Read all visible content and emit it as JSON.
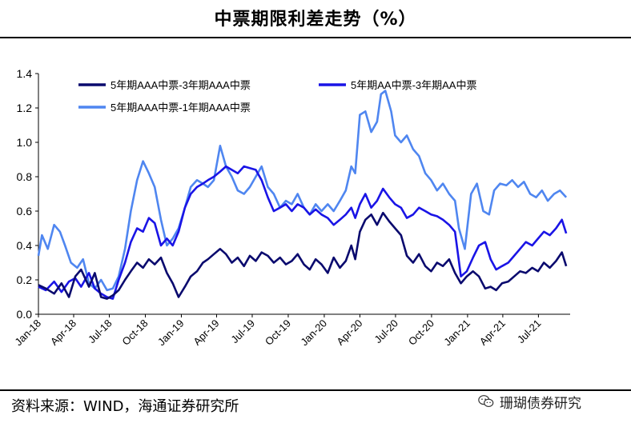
{
  "title": "中票期限利差走势（%）",
  "source": "资料来源：WIND，海通证券研究所",
  "watermark": "珊瑚债券研究",
  "chart_data": {
    "type": "line",
    "title": "中票期限利差走势（%）",
    "xlabel": "",
    "ylabel": "",
    "ylim": [
      0,
      1.4
    ],
    "yticks": [
      "0.0",
      "0.2",
      "0.4",
      "0.6",
      "0.8",
      "1.0",
      "1.2",
      "1.4"
    ],
    "x_tick_labels": [
      "Jan-18",
      "Apr-18",
      "Jul-18",
      "Oct-18",
      "Jan-19",
      "Apr-19",
      "Jul-19",
      "Oct-19",
      "Jan-20",
      "Apr-20",
      "Jul-20",
      "Oct-20",
      "Jan-21",
      "Apr-21",
      "Jul-21"
    ],
    "grid": false,
    "legend_position": "top",
    "series": [
      {
        "name": "5年期AAA中票-3年期AAA中票",
        "color": "#0a0a6e",
        "points": [
          [
            "2018-01-01",
            0.17
          ],
          [
            "2018-01-20",
            0.15
          ],
          [
            "2018-02-10",
            0.12
          ],
          [
            "2018-03-01",
            0.18
          ],
          [
            "2018-03-20",
            0.1
          ],
          [
            "2018-04-05",
            0.22
          ],
          [
            "2018-04-20",
            0.26
          ],
          [
            "2018-05-10",
            0.16
          ],
          [
            "2018-05-25",
            0.24
          ],
          [
            "2018-06-10",
            0.1
          ],
          [
            "2018-06-25",
            0.09
          ],
          [
            "2018-07-10",
            0.11
          ],
          [
            "2018-07-25",
            0.14
          ],
          [
            "2018-08-10",
            0.2
          ],
          [
            "2018-08-25",
            0.25
          ],
          [
            "2018-09-10",
            0.3
          ],
          [
            "2018-09-25",
            0.27
          ],
          [
            "2018-10-10",
            0.32
          ],
          [
            "2018-10-25",
            0.29
          ],
          [
            "2018-11-10",
            0.33
          ],
          [
            "2018-11-25",
            0.24
          ],
          [
            "2018-12-10",
            0.18
          ],
          [
            "2018-12-25",
            0.1
          ],
          [
            "2019-01-10",
            0.16
          ],
          [
            "2019-01-25",
            0.22
          ],
          [
            "2019-02-10",
            0.25
          ],
          [
            "2019-02-25",
            0.3
          ],
          [
            "2019-03-10",
            0.32
          ],
          [
            "2019-03-25",
            0.35
          ],
          [
            "2019-04-10",
            0.38
          ],
          [
            "2019-04-25",
            0.35
          ],
          [
            "2019-05-10",
            0.3
          ],
          [
            "2019-05-25",
            0.33
          ],
          [
            "2019-06-10",
            0.28
          ],
          [
            "2019-06-25",
            0.34
          ],
          [
            "2019-07-10",
            0.31
          ],
          [
            "2019-07-25",
            0.36
          ],
          [
            "2019-08-10",
            0.34
          ],
          [
            "2019-08-25",
            0.3
          ],
          [
            "2019-09-10",
            0.33
          ],
          [
            "2019-09-25",
            0.29
          ],
          [
            "2019-10-10",
            0.31
          ],
          [
            "2019-10-25",
            0.35
          ],
          [
            "2019-11-10",
            0.29
          ],
          [
            "2019-11-25",
            0.26
          ],
          [
            "2019-12-10",
            0.32
          ],
          [
            "2019-12-25",
            0.29
          ],
          [
            "2020-01-10",
            0.24
          ],
          [
            "2020-01-25",
            0.33
          ],
          [
            "2020-02-10",
            0.27
          ],
          [
            "2020-02-25",
            0.31
          ],
          [
            "2020-03-10",
            0.4
          ],
          [
            "2020-03-20",
            0.32
          ],
          [
            "2020-04-01",
            0.48
          ],
          [
            "2020-04-15",
            0.55
          ],
          [
            "2020-04-30",
            0.58
          ],
          [
            "2020-05-15",
            0.52
          ],
          [
            "2020-05-30",
            0.59
          ],
          [
            "2020-06-15",
            0.54
          ],
          [
            "2020-06-30",
            0.5
          ],
          [
            "2020-07-15",
            0.46
          ],
          [
            "2020-07-30",
            0.34
          ],
          [
            "2020-08-15",
            0.3
          ],
          [
            "2020-08-30",
            0.35
          ],
          [
            "2020-09-15",
            0.28
          ],
          [
            "2020-09-30",
            0.25
          ],
          [
            "2020-10-15",
            0.3
          ],
          [
            "2020-10-30",
            0.28
          ],
          [
            "2020-11-15",
            0.32
          ],
          [
            "2020-11-30",
            0.24
          ],
          [
            "2020-12-15",
            0.18
          ],
          [
            "2020-12-30",
            0.22
          ],
          [
            "2021-01-15",
            0.25
          ],
          [
            "2021-01-30",
            0.22
          ],
          [
            "2021-02-15",
            0.15
          ],
          [
            "2021-03-01",
            0.16
          ],
          [
            "2021-03-15",
            0.14
          ],
          [
            "2021-03-30",
            0.18
          ],
          [
            "2021-04-15",
            0.19
          ],
          [
            "2021-04-30",
            0.22
          ],
          [
            "2021-05-15",
            0.25
          ],
          [
            "2021-05-30",
            0.24
          ],
          [
            "2021-06-15",
            0.27
          ],
          [
            "2021-06-30",
            0.25
          ],
          [
            "2021-07-15",
            0.3
          ],
          [
            "2021-07-30",
            0.27
          ],
          [
            "2021-08-15",
            0.31
          ],
          [
            "2021-08-30",
            0.36
          ],
          [
            "2021-09-10",
            0.28
          ]
        ]
      },
      {
        "name": "5年期AA中票-3年期AA中票",
        "color": "#1a14e6",
        "points": [
          [
            "2018-01-01",
            0.16
          ],
          [
            "2018-01-20",
            0.14
          ],
          [
            "2018-02-10",
            0.19
          ],
          [
            "2018-03-01",
            0.13
          ],
          [
            "2018-03-20",
            0.19
          ],
          [
            "2018-04-05",
            0.21
          ],
          [
            "2018-04-20",
            0.16
          ],
          [
            "2018-05-10",
            0.24
          ],
          [
            "2018-05-25",
            0.15
          ],
          [
            "2018-06-10",
            0.12
          ],
          [
            "2018-06-25",
            0.1
          ],
          [
            "2018-07-10",
            0.09
          ],
          [
            "2018-07-25",
            0.2
          ],
          [
            "2018-08-10",
            0.3
          ],
          [
            "2018-08-25",
            0.42
          ],
          [
            "2018-09-10",
            0.5
          ],
          [
            "2018-09-25",
            0.48
          ],
          [
            "2018-10-10",
            0.56
          ],
          [
            "2018-10-25",
            0.53
          ],
          [
            "2018-11-10",
            0.4
          ],
          [
            "2018-11-25",
            0.44
          ],
          [
            "2018-12-10",
            0.4
          ],
          [
            "2018-12-25",
            0.48
          ],
          [
            "2019-01-10",
            0.62
          ],
          [
            "2019-01-25",
            0.7
          ],
          [
            "2019-02-10",
            0.74
          ],
          [
            "2019-02-25",
            0.76
          ],
          [
            "2019-03-10",
            0.78
          ],
          [
            "2019-03-25",
            0.8
          ],
          [
            "2019-04-10",
            0.83
          ],
          [
            "2019-04-25",
            0.86
          ],
          [
            "2019-05-10",
            0.84
          ],
          [
            "2019-05-25",
            0.82
          ],
          [
            "2019-06-10",
            0.86
          ],
          [
            "2019-06-25",
            0.85
          ],
          [
            "2019-07-10",
            0.84
          ],
          [
            "2019-07-25",
            0.78
          ],
          [
            "2019-08-10",
            0.68
          ],
          [
            "2019-08-25",
            0.6
          ],
          [
            "2019-09-10",
            0.62
          ],
          [
            "2019-09-25",
            0.64
          ],
          [
            "2019-10-10",
            0.6
          ],
          [
            "2019-10-25",
            0.64
          ],
          [
            "2019-11-10",
            0.62
          ],
          [
            "2019-11-25",
            0.58
          ],
          [
            "2019-12-10",
            0.61
          ],
          [
            "2019-12-25",
            0.58
          ],
          [
            "2020-01-10",
            0.56
          ],
          [
            "2020-01-25",
            0.52
          ],
          [
            "2020-02-10",
            0.55
          ],
          [
            "2020-02-25",
            0.58
          ],
          [
            "2020-03-10",
            0.62
          ],
          [
            "2020-03-20",
            0.56
          ],
          [
            "2020-04-01",
            0.64
          ],
          [
            "2020-04-15",
            0.7
          ],
          [
            "2020-04-30",
            0.62
          ],
          [
            "2020-05-15",
            0.66
          ],
          [
            "2020-05-30",
            0.73
          ],
          [
            "2020-06-15",
            0.68
          ],
          [
            "2020-06-30",
            0.64
          ],
          [
            "2020-07-15",
            0.62
          ],
          [
            "2020-07-30",
            0.56
          ],
          [
            "2020-08-15",
            0.58
          ],
          [
            "2020-08-30",
            0.62
          ],
          [
            "2020-09-15",
            0.6
          ],
          [
            "2020-09-30",
            0.58
          ],
          [
            "2020-10-15",
            0.57
          ],
          [
            "2020-10-30",
            0.55
          ],
          [
            "2020-11-15",
            0.52
          ],
          [
            "2020-11-30",
            0.48
          ],
          [
            "2020-12-15",
            0.22
          ],
          [
            "2020-12-30",
            0.25
          ],
          [
            "2021-01-15",
            0.33
          ],
          [
            "2021-01-30",
            0.4
          ],
          [
            "2021-02-15",
            0.42
          ],
          [
            "2021-03-01",
            0.32
          ],
          [
            "2021-03-15",
            0.26
          ],
          [
            "2021-03-30",
            0.28
          ],
          [
            "2021-04-15",
            0.3
          ],
          [
            "2021-04-30",
            0.34
          ],
          [
            "2021-05-15",
            0.38
          ],
          [
            "2021-05-30",
            0.42
          ],
          [
            "2021-06-15",
            0.4
          ],
          [
            "2021-06-30",
            0.44
          ],
          [
            "2021-07-15",
            0.48
          ],
          [
            "2021-07-30",
            0.46
          ],
          [
            "2021-08-15",
            0.5
          ],
          [
            "2021-08-30",
            0.55
          ],
          [
            "2021-09-10",
            0.47
          ]
        ]
      },
      {
        "name": "5年期AAA中票-1年期AAA中票",
        "color": "#4f86f0",
        "points": [
          [
            "2018-01-01",
            0.34
          ],
          [
            "2018-01-10",
            0.46
          ],
          [
            "2018-01-25",
            0.38
          ],
          [
            "2018-02-10",
            0.52
          ],
          [
            "2018-02-25",
            0.48
          ],
          [
            "2018-03-10",
            0.4
          ],
          [
            "2018-03-25",
            0.3
          ],
          [
            "2018-04-10",
            0.27
          ],
          [
            "2018-04-25",
            0.32
          ],
          [
            "2018-05-10",
            0.18
          ],
          [
            "2018-05-25",
            0.15
          ],
          [
            "2018-06-10",
            0.2
          ],
          [
            "2018-06-25",
            0.14
          ],
          [
            "2018-07-10",
            0.15
          ],
          [
            "2018-07-25",
            0.22
          ],
          [
            "2018-08-10",
            0.38
          ],
          [
            "2018-08-25",
            0.6
          ],
          [
            "2018-09-10",
            0.78
          ],
          [
            "2018-09-25",
            0.89
          ],
          [
            "2018-10-10",
            0.82
          ],
          [
            "2018-10-25",
            0.74
          ],
          [
            "2018-11-10",
            0.55
          ],
          [
            "2018-11-25",
            0.4
          ],
          [
            "2018-12-10",
            0.44
          ],
          [
            "2018-12-25",
            0.5
          ],
          [
            "2019-01-10",
            0.62
          ],
          [
            "2019-01-25",
            0.74
          ],
          [
            "2019-02-10",
            0.78
          ],
          [
            "2019-02-25",
            0.76
          ],
          [
            "2019-03-10",
            0.74
          ],
          [
            "2019-03-25",
            0.78
          ],
          [
            "2019-04-10",
            0.98
          ],
          [
            "2019-04-25",
            0.86
          ],
          [
            "2019-05-10",
            0.8
          ],
          [
            "2019-05-25",
            0.72
          ],
          [
            "2019-06-10",
            0.7
          ],
          [
            "2019-06-25",
            0.74
          ],
          [
            "2019-07-10",
            0.8
          ],
          [
            "2019-07-25",
            0.86
          ],
          [
            "2019-08-10",
            0.74
          ],
          [
            "2019-08-25",
            0.7
          ],
          [
            "2019-09-10",
            0.62
          ],
          [
            "2019-09-25",
            0.66
          ],
          [
            "2019-10-10",
            0.64
          ],
          [
            "2019-10-25",
            0.7
          ],
          [
            "2019-11-10",
            0.62
          ],
          [
            "2019-11-25",
            0.58
          ],
          [
            "2019-12-10",
            0.64
          ],
          [
            "2019-12-25",
            0.6
          ],
          [
            "2020-01-10",
            0.64
          ],
          [
            "2020-01-25",
            0.6
          ],
          [
            "2020-02-10",
            0.66
          ],
          [
            "2020-02-25",
            0.72
          ],
          [
            "2020-03-10",
            0.86
          ],
          [
            "2020-03-20",
            0.82
          ],
          [
            "2020-04-01",
            1.16
          ],
          [
            "2020-04-15",
            1.18
          ],
          [
            "2020-04-30",
            1.06
          ],
          [
            "2020-05-15",
            1.12
          ],
          [
            "2020-05-25",
            1.28
          ],
          [
            "2020-06-05",
            1.3
          ],
          [
            "2020-06-20",
            1.18
          ],
          [
            "2020-06-30",
            1.04
          ],
          [
            "2020-07-15",
            1.0
          ],
          [
            "2020-07-30",
            1.04
          ],
          [
            "2020-08-15",
            0.96
          ],
          [
            "2020-08-30",
            0.92
          ],
          [
            "2020-09-15",
            0.82
          ],
          [
            "2020-09-30",
            0.78
          ],
          [
            "2020-10-15",
            0.72
          ],
          [
            "2020-10-30",
            0.76
          ],
          [
            "2020-11-15",
            0.7
          ],
          [
            "2020-11-30",
            0.66
          ],
          [
            "2020-12-10",
            0.5
          ],
          [
            "2020-12-25",
            0.38
          ],
          [
            "2021-01-10",
            0.7
          ],
          [
            "2021-01-25",
            0.76
          ],
          [
            "2021-02-10",
            0.6
          ],
          [
            "2021-02-25",
            0.58
          ],
          [
            "2021-03-10",
            0.72
          ],
          [
            "2021-03-25",
            0.76
          ],
          [
            "2021-04-10",
            0.75
          ],
          [
            "2021-04-25",
            0.78
          ],
          [
            "2021-05-10",
            0.74
          ],
          [
            "2021-05-25",
            0.77
          ],
          [
            "2021-06-10",
            0.7
          ],
          [
            "2021-06-25",
            0.68
          ],
          [
            "2021-07-10",
            0.72
          ],
          [
            "2021-07-25",
            0.66
          ],
          [
            "2021-08-10",
            0.7
          ],
          [
            "2021-08-25",
            0.72
          ],
          [
            "2021-09-10",
            0.68
          ]
        ]
      }
    ]
  }
}
